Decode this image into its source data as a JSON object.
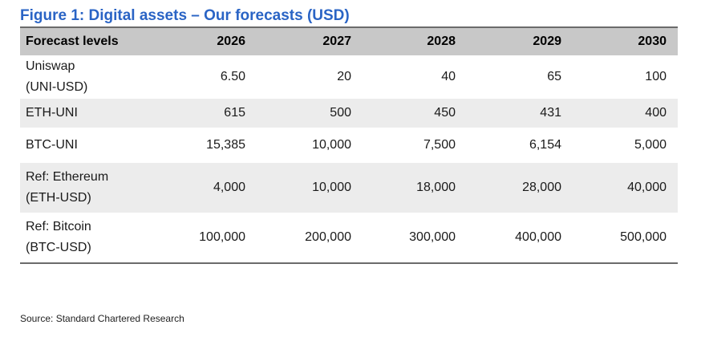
{
  "title": "Figure 1: Digital assets – Our forecasts (USD)",
  "table": {
    "headers": [
      "Forecast levels",
      "2026",
      "2027",
      "2028",
      "2029",
      "2030"
    ],
    "rows": [
      {
        "label_lines": [
          "Uniswap",
          "(UNI-USD)"
        ],
        "values": [
          "6.50",
          "20",
          "40",
          "65",
          "100"
        ]
      },
      {
        "label_lines": [
          "ETH-UNI"
        ],
        "values": [
          "615",
          "500",
          "450",
          "431",
          "400"
        ]
      },
      {
        "label_lines": [
          "BTC-UNI"
        ],
        "values": [
          "15,385",
          "10,000",
          "7,500",
          "6,154",
          "5,000"
        ]
      },
      {
        "label_lines": [
          "Ref: Ethereum",
          "(ETH-USD)"
        ],
        "values": [
          "4,000",
          "10,000",
          "18,000",
          "28,000",
          "40,000"
        ]
      },
      {
        "label_lines": [
          "Ref: Bitcoin",
          "(BTC-USD)"
        ],
        "values": [
          "100,000",
          "200,000",
          "300,000",
          "400,000",
          "500,000"
        ]
      }
    ]
  },
  "source": "Source: Standard Chartered Research"
}
